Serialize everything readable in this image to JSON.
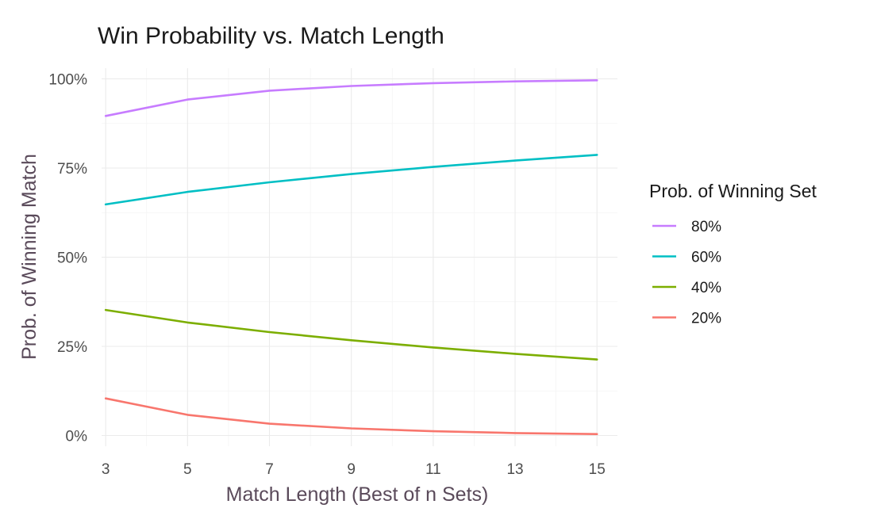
{
  "chart_data": {
    "type": "line",
    "title": "Win Probability vs. Match Length",
    "xlabel": "Match Length (Best of n Sets)",
    "ylabel": "Prob. of Winning Match",
    "x": [
      3,
      5,
      7,
      9,
      11,
      13,
      15
    ],
    "xticks": [
      3,
      5,
      7,
      9,
      11,
      13,
      15
    ],
    "xlim": [
      2.9,
      15.5
    ],
    "ylim": [
      -0.03,
      1.03
    ],
    "yticks": [
      {
        "value": 0,
        "label": "0%"
      },
      {
        "value": 0.25,
        "label": "25%"
      },
      {
        "value": 0.5,
        "label": "50%"
      },
      {
        "value": 0.75,
        "label": "75%"
      },
      {
        "value": 1,
        "label": "100%"
      }
    ],
    "grid": true,
    "legend": {
      "title": "Prob. of Winning Set",
      "placement": "right"
    },
    "series": [
      {
        "name": "80%",
        "color": "#C77CFF",
        "values": [
          0.896,
          0.942,
          0.967,
          0.98,
          0.988,
          0.993,
          0.996
        ]
      },
      {
        "name": "60%",
        "color": "#00BFC4",
        "values": [
          0.648,
          0.683,
          0.71,
          0.733,
          0.753,
          0.771,
          0.787
        ]
      },
      {
        "name": "40%",
        "color": "#7CAE00",
        "values": [
          0.352,
          0.317,
          0.29,
          0.267,
          0.247,
          0.229,
          0.213
        ]
      },
      {
        "name": "20%",
        "color": "#F8766D",
        "values": [
          0.104,
          0.058,
          0.033,
          0.02,
          0.012,
          0.007,
          0.004
        ]
      }
    ]
  }
}
